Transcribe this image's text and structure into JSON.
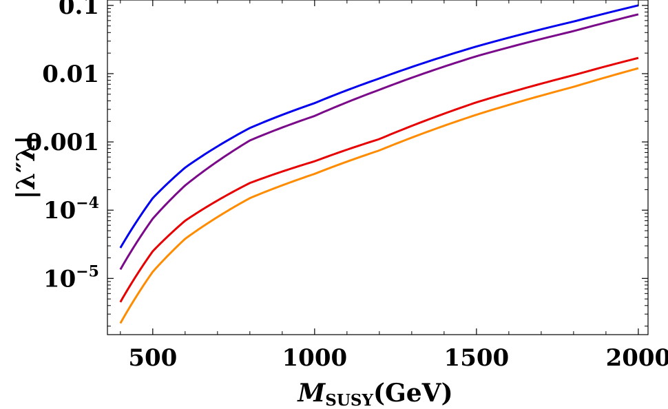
{
  "chart_data": {
    "type": "line",
    "title": "",
    "xlabel": {
      "main": "M",
      "sub": "SUSY",
      "unit": "(GeV)"
    },
    "ylabel": "|λ″λ|",
    "xlim": [
      360,
      2030
    ],
    "ylim": [
      1.5e-06,
      0.12
    ],
    "yscale": "log",
    "grid": false,
    "x_ticks": [
      {
        "value": 500,
        "label": "500"
      },
      {
        "value": 1000,
        "label": "1000"
      },
      {
        "value": 1500,
        "label": "1500"
      },
      {
        "value": 2000,
        "label": "2000"
      }
    ],
    "y_ticks": [
      {
        "value": 1e-05,
        "label": "10",
        "exp": "−5"
      },
      {
        "value": 0.0001,
        "label": "10",
        "exp": "−4"
      },
      {
        "value": 0.001,
        "label": "0.001",
        "exp": ""
      },
      {
        "value": 0.01,
        "label": "0.01",
        "exp": ""
      },
      {
        "value": 0.1,
        "label": "0.1",
        "exp": ""
      }
    ],
    "x": [
      400,
      500,
      600,
      800,
      1000,
      1200,
      1500,
      1800,
      2000
    ],
    "series": [
      {
        "color": "#0000ee",
        "values": [
          2.8e-05,
          0.00015,
          0.00042,
          0.0016,
          0.0037,
          0.0085,
          0.025,
          0.058,
          0.1
        ]
      },
      {
        "color": "#7a0a8a",
        "values": [
          1.35e-05,
          7.5e-05,
          0.00023,
          0.00105,
          0.0024,
          0.0058,
          0.018,
          0.042,
          0.074
        ]
      },
      {
        "color": "#e60000",
        "values": [
          4.5e-06,
          2.5e-05,
          7e-05,
          0.00025,
          0.00052,
          0.0011,
          0.0038,
          0.0095,
          0.017
        ]
      },
      {
        "color": "#ff8c00",
        "values": [
          2.2e-06,
          1.25e-05,
          3.8e-05,
          0.00015,
          0.00034,
          0.00075,
          0.0025,
          0.0064,
          0.012
        ]
      }
    ]
  }
}
